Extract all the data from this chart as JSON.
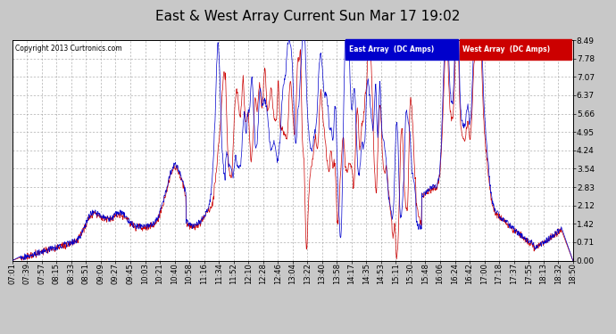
{
  "title": "East & West Array Current Sun Mar 17 19:02",
  "copyright": "Copyright 2013 Curtronics.com",
  "legend": [
    {
      "label": "East Array  (DC Amps)",
      "color": "#0000cc"
    },
    {
      "label": "West Array  (DC Amps)",
      "color": "#cc0000"
    }
  ],
  "yticks": [
    0.0,
    0.71,
    1.42,
    2.12,
    2.83,
    3.54,
    4.24,
    4.95,
    5.66,
    6.37,
    7.07,
    7.78,
    8.49
  ],
  "ylim": [
    0.0,
    8.49
  ],
  "background_color": "#c8c8c8",
  "plot_background": "#ffffff",
  "grid_color": "#999999",
  "title_fontsize": 11,
  "tick_fontsize": 6.5,
  "seed": 12345,
  "num_points": 1400,
  "time_labels": [
    "07:01",
    "07:39",
    "07:57",
    "08:15",
    "08:33",
    "08:51",
    "09:09",
    "09:27",
    "09:45",
    "10:03",
    "10:21",
    "10:40",
    "10:58",
    "11:16",
    "11:34",
    "11:52",
    "12:10",
    "12:28",
    "12:46",
    "13:04",
    "13:22",
    "13:40",
    "13:58",
    "14:17",
    "14:35",
    "14:53",
    "15:11",
    "15:30",
    "15:48",
    "16:06",
    "16:24",
    "16:42",
    "17:00",
    "17:18",
    "17:37",
    "17:55",
    "18:13",
    "18:32",
    "18:50"
  ]
}
